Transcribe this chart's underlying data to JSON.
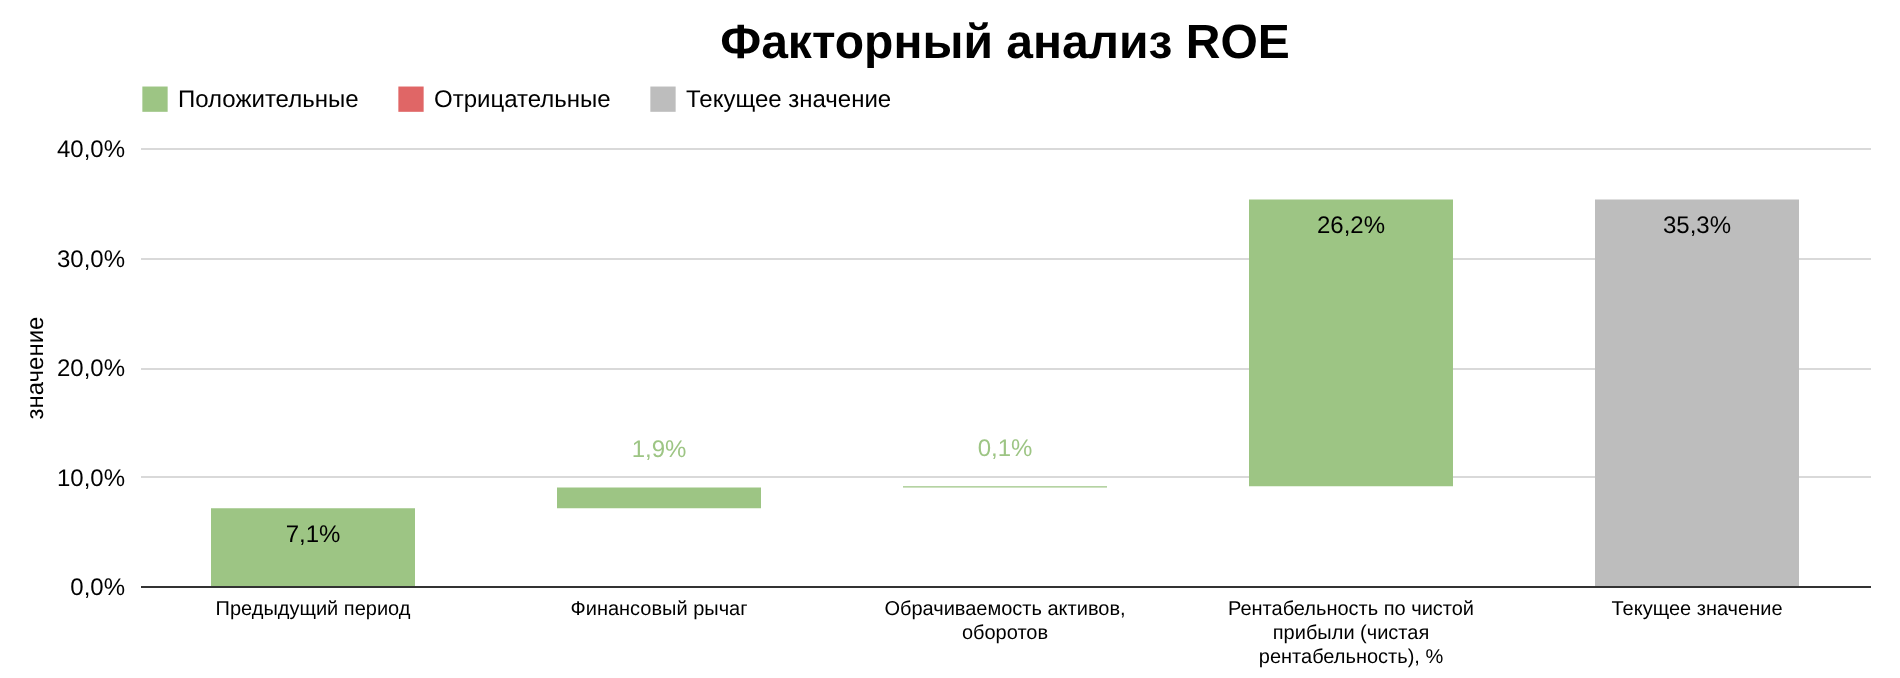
{
  "chart_data": {
    "type": "bar",
    "title": "Факторный анализ ROE",
    "ylabel": "значение",
    "categories": [
      "Предыдущий период",
      "Финансовый рычаг",
      "Обрачиваемость активов, оборотов",
      "Рентабельность по чистой прибыли (чистая рентабельность), %",
      "Текущее значение"
    ],
    "series": [
      {
        "name": "Положительные",
        "color": "#9dc584",
        "base": [
          0,
          7.1,
          9.0,
          9.1,
          null
        ],
        "values": [
          7.1,
          1.9,
          0.1,
          26.2,
          null
        ],
        "value_labels": [
          "7,1%",
          "1,9%",
          "0,1%",
          "26,2%",
          null
        ]
      },
      {
        "name": "Отрицательные",
        "color": "#e06666",
        "values": [
          null,
          null,
          null,
          null,
          null
        ],
        "value_labels": [
          null,
          null,
          null,
          null,
          null
        ]
      },
      {
        "name": "Текущее значение",
        "color": "#bdbdbd",
        "values": [
          null,
          null,
          null,
          null,
          35.3
        ],
        "value_labels": [
          null,
          null,
          null,
          null,
          "35,3%"
        ]
      }
    ],
    "ylim": [
      0,
      40
    ],
    "yticks": [
      {
        "value": 0,
        "label": "0,0%"
      },
      {
        "value": 10,
        "label": "10,0%"
      },
      {
        "value": 20,
        "label": "20,0%"
      },
      {
        "value": 30,
        "label": "30,0%"
      },
      {
        "value": 40,
        "label": "40,0%"
      }
    ],
    "grid": true,
    "legend": "top"
  }
}
